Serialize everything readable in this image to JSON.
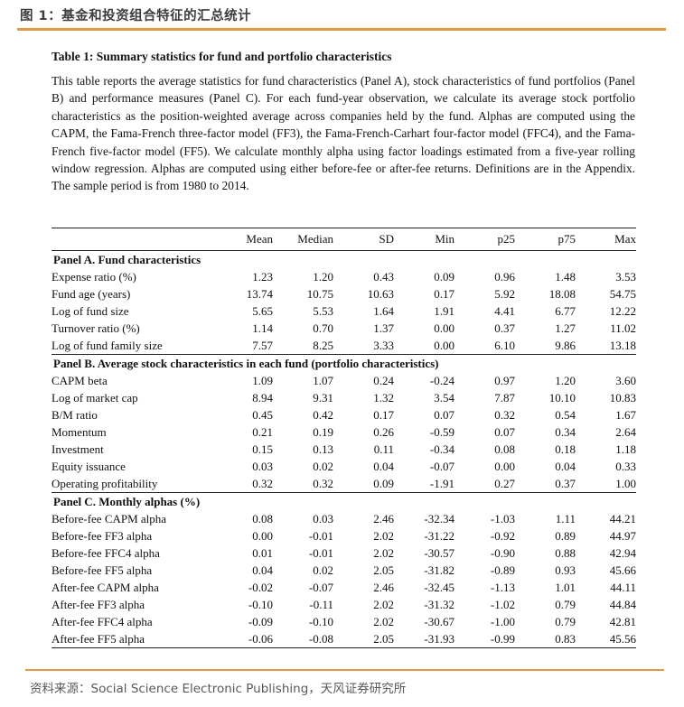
{
  "header": {
    "figure_title": "图 1：基金和投资组合特征的汇总统计"
  },
  "content": {
    "table_heading": "Table 1: Summary statistics for fund and portfolio characteristics",
    "description": "This table reports the average statistics for fund characteristics (Panel A), stock characteristics of fund portfolios (Panel B) and performance measures (Panel C). For each fund-year observation, we calculate its average stock portfolio characteristics as the position-weighted average across companies held by the fund. Alphas are computed using the CAPM, the Fama-French three-factor model (FF3), the Fama-French-Carhart four-factor model (FFC4), and the Fama-French five-factor model (FF5). We calculate monthly alpha using factor loadings estimated from a five-year rolling window regression. Alphas are computed using either before-fee or after-fee returns. Definitions are in the Appendix. The sample period is from 1980 to 2014."
  },
  "table": {
    "row_label_header": "",
    "columns": [
      "Mean",
      "Median",
      "SD",
      "Min",
      "p25",
      "p75",
      "Max"
    ],
    "panels": [
      {
        "label": "Panel A. Fund characteristics",
        "rows": [
          {
            "label": "Expense ratio (%)",
            "values": [
              "1.23",
              "1.20",
              "0.43",
              "0.09",
              "0.96",
              "1.48",
              "3.53"
            ]
          },
          {
            "label": "Fund age (years)",
            "values": [
              "13.74",
              "10.75",
              "10.63",
              "0.17",
              "5.92",
              "18.08",
              "54.75"
            ]
          },
          {
            "label": "Log of fund size",
            "values": [
              "5.65",
              "5.53",
              "1.64",
              "1.91",
              "4.41",
              "6.77",
              "12.22"
            ]
          },
          {
            "label": "Turnover ratio (%)",
            "values": [
              "1.14",
              "0.70",
              "1.37",
              "0.00",
              "0.37",
              "1.27",
              "11.02"
            ]
          },
          {
            "label": "Log of fund family size",
            "values": [
              "7.57",
              "8.25",
              "3.33",
              "0.00",
              "6.10",
              "9.86",
              "13.18"
            ]
          }
        ]
      },
      {
        "label": "Panel B. Average stock characteristics in each fund (portfolio characteristics)",
        "rows": [
          {
            "label": "CAPM beta",
            "values": [
              "1.09",
              "1.07",
              "0.24",
              "-0.24",
              "0.97",
              "1.20",
              "3.60"
            ]
          },
          {
            "label": "Log of market cap",
            "values": [
              "8.94",
              "9.31",
              "1.32",
              "3.54",
              "7.87",
              "10.10",
              "10.83"
            ]
          },
          {
            "label": "B/M ratio",
            "values": [
              "0.45",
              "0.42",
              "0.17",
              "0.07",
              "0.32",
              "0.54",
              "1.67"
            ]
          },
          {
            "label": "Momentum",
            "values": [
              "0.21",
              "0.19",
              "0.26",
              "-0.59",
              "0.07",
              "0.34",
              "2.64"
            ]
          },
          {
            "label": "Investment",
            "values": [
              "0.15",
              "0.13",
              "0.11",
              "-0.34",
              "0.08",
              "0.18",
              "1.18"
            ]
          },
          {
            "label": "Equity issuance",
            "values": [
              "0.03",
              "0.02",
              "0.04",
              "-0.07",
              "0.00",
              "0.04",
              "0.33"
            ]
          },
          {
            "label": "Operating profitability",
            "values": [
              "0.32",
              "0.32",
              "0.09",
              "-1.91",
              "0.27",
              "0.37",
              "1.00"
            ]
          }
        ]
      },
      {
        "label": "Panel C. Monthly alphas (%)",
        "rows": [
          {
            "label": "Before-fee CAPM alpha",
            "values": [
              "0.08",
              "0.03",
              "2.46",
              "-32.34",
              "-1.03",
              "1.11",
              "44.21"
            ]
          },
          {
            "label": "Before-fee FF3 alpha",
            "values": [
              "0.00",
              "-0.01",
              "2.02",
              "-31.22",
              "-0.92",
              "0.89",
              "44.97"
            ]
          },
          {
            "label": "Before-fee FFC4 alpha",
            "values": [
              "0.01",
              "-0.01",
              "2.02",
              "-30.57",
              "-0.90",
              "0.88",
              "42.94"
            ]
          },
          {
            "label": "Before-fee FF5 alpha",
            "values": [
              "0.04",
              "0.02",
              "2.05",
              "-31.82",
              "-0.89",
              "0.93",
              "45.66"
            ]
          },
          {
            "label": "After-fee CAPM alpha",
            "values": [
              "-0.02",
              "-0.07",
              "2.46",
              "-32.45",
              "-1.13",
              "1.01",
              "44.11"
            ]
          },
          {
            "label": "After-fee FF3 alpha",
            "values": [
              "-0.10",
              "-0.11",
              "2.02",
              "-31.32",
              "-1.02",
              "0.79",
              "44.84"
            ]
          },
          {
            "label": "After-fee FFC4 alpha",
            "values": [
              "-0.09",
              "-0.10",
              "2.02",
              "-30.67",
              "-1.00",
              "0.79",
              "42.81"
            ]
          },
          {
            "label": "After-fee FF5 alpha",
            "values": [
              "-0.06",
              "-0.08",
              "2.05",
              "-31.93",
              "-0.99",
              "0.83",
              "45.56"
            ]
          }
        ]
      }
    ]
  },
  "footer": {
    "source_label": "资料来源：",
    "source_text": "Social Science Electronic Publishing，天风证券研究所"
  },
  "colors": {
    "accent_orange": "#de9a44",
    "figure_title_text": "#3d3d3d",
    "source_text": "#595959",
    "table_text": "#111111"
  }
}
